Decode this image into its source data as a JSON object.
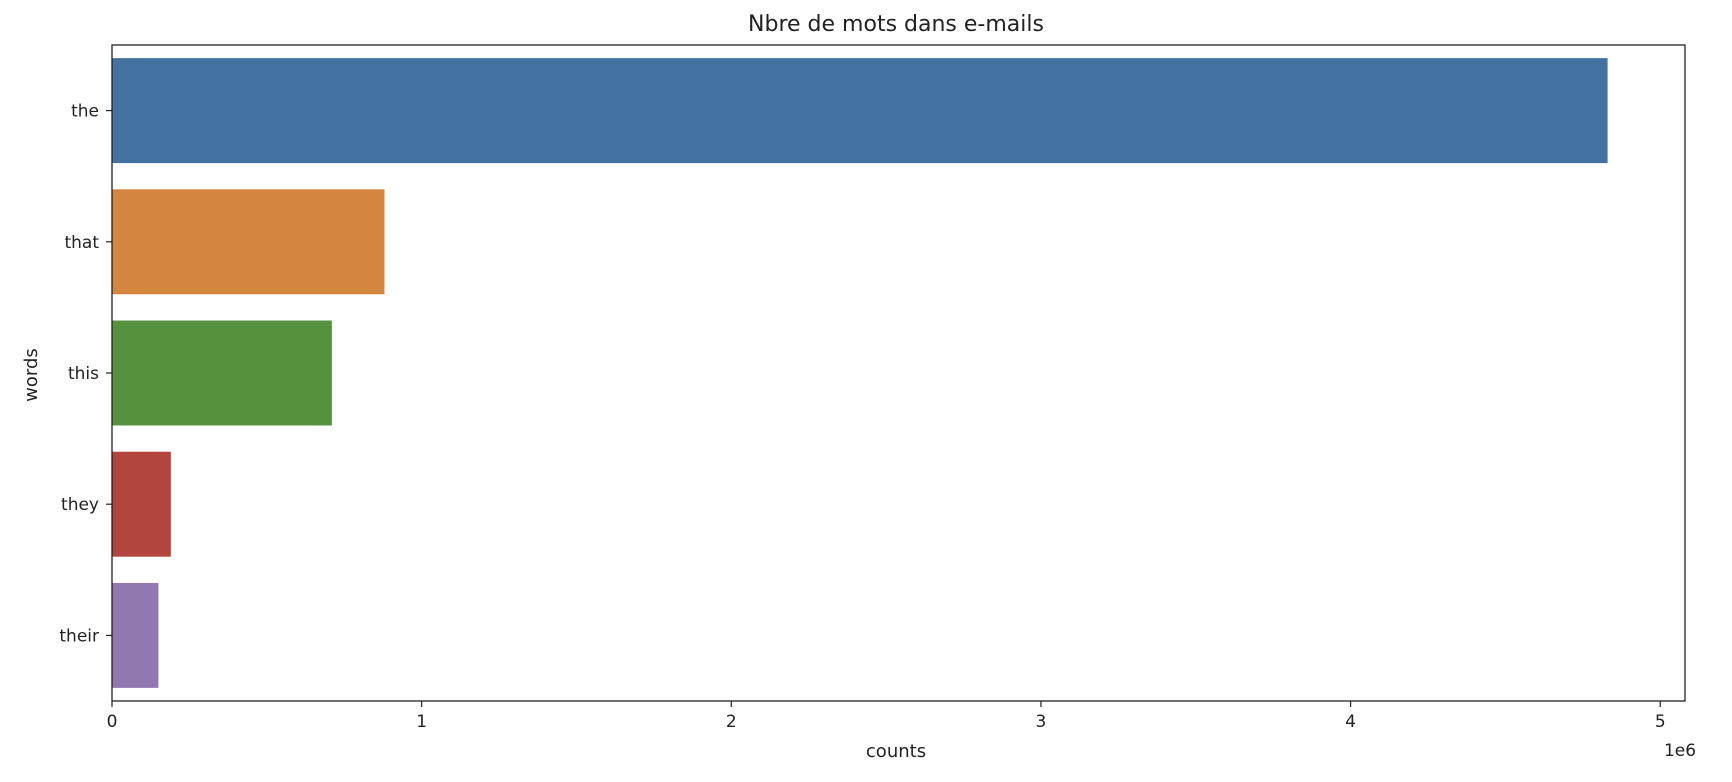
{
  "chart_data": {
    "type": "bar",
    "orientation": "horizontal",
    "title": "Nbre de mots dans e-mails",
    "xlabel": "counts",
    "ylabel": "words",
    "x_scale_note": "1e6",
    "xlim": [
      0,
      5.08
    ],
    "xticks": [
      0,
      1,
      2,
      3,
      4,
      5
    ],
    "categories": [
      "the",
      "that",
      "this",
      "they",
      "their"
    ],
    "values": [
      4.83,
      0.88,
      0.71,
      0.19,
      0.15
    ],
    "colors": [
      "#4472a0",
      "#d48540",
      "#55913f",
      "#b2463f",
      "#9178b1"
    ],
    "grid": false,
    "legend": "none"
  }
}
